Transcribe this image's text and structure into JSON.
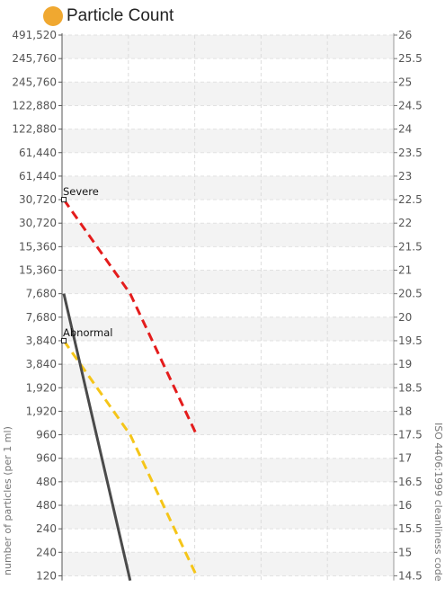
{
  "title": "Particle Count",
  "colors": {
    "title_dot": "#f0a830",
    "severe": "#e41c1c",
    "abnormal": "#f5c518",
    "measured": "#4a4a4a"
  },
  "chart_data": {
    "type": "line",
    "left_axis": {
      "label": "number of particles (per 1 ml)",
      "tick_labels": [
        "491,520",
        "245,760",
        "245,760",
        "122,880",
        "122,880",
        "61,440",
        "61,440",
        "30,720",
        "30,720",
        "15,360",
        "15,360",
        "7,680",
        "7,680",
        "3,840",
        "3,840",
        "1,920",
        "1,920",
        "960",
        "960",
        "480",
        "480",
        "240",
        "240",
        "120"
      ]
    },
    "right_axis": {
      "label": "ISO 4406:1999 cleanliness code",
      "ticks": [
        26,
        25.5,
        25,
        24.5,
        24,
        23.5,
        23,
        22.5,
        22,
        21.5,
        21,
        20.5,
        20,
        19.5,
        19,
        18.5,
        18,
        17.5,
        17,
        16.5,
        16,
        15.5,
        15,
        14.5
      ],
      "range": [
        14.4,
        26
      ]
    },
    "x_categories": 5,
    "grid": true,
    "series": [
      {
        "name": "Severe",
        "color": "#e41c1c",
        "dash": true,
        "points": [
          [
            0,
            22.5
          ],
          [
            1,
            20.5
          ],
          [
            2,
            17.5
          ]
        ]
      },
      {
        "name": "Abnormal",
        "color": "#f5c518",
        "dash": true,
        "points": [
          [
            0,
            19.5
          ],
          [
            1,
            17.5
          ],
          [
            2,
            14.5
          ]
        ]
      },
      {
        "color": "#4a4a4a",
        "dash": false,
        "points": [
          [
            0,
            20.5
          ],
          [
            1,
            14.4
          ]
        ]
      }
    ],
    "annotations": [
      {
        "text": "Severe",
        "series": 0
      },
      {
        "text": "Abnormal",
        "series": 1
      }
    ]
  }
}
